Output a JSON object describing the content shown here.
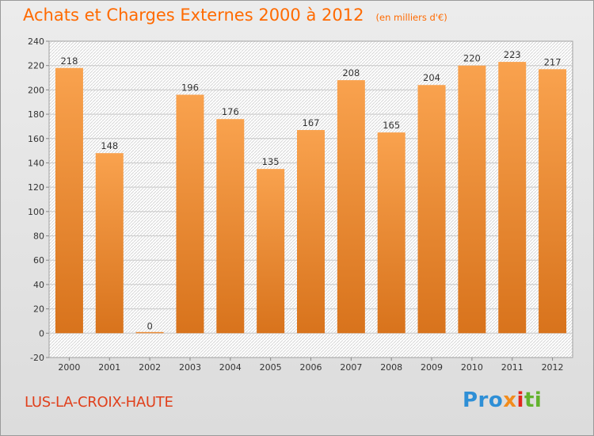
{
  "title": "Achats et Charges Externes 2000 à 2012",
  "subtitle": "(en milliers d'€)",
  "commune": "LUS-LA-CROIX-HAUTE",
  "logo": {
    "parts": [
      "Pro",
      "x",
      "i",
      "ti"
    ]
  },
  "colors": {
    "bar_light": "#f9a24e",
    "bar_dark": "#d8731c",
    "title": "#ff6a00",
    "commune": "#e0401c"
  },
  "chart_data": {
    "type": "bar",
    "categories": [
      "2000",
      "2001",
      "2002",
      "2003",
      "2004",
      "2005",
      "2006",
      "2007",
      "2008",
      "2009",
      "2010",
      "2011",
      "2012"
    ],
    "values": [
      218,
      148,
      0,
      196,
      176,
      135,
      167,
      208,
      165,
      204,
      220,
      223,
      217
    ],
    "title": "Achats et Charges Externes 2000 à 2012",
    "ylim": [
      -20,
      240
    ],
    "yticks": [
      -20,
      0,
      20,
      40,
      60,
      80,
      100,
      120,
      140,
      160,
      180,
      200,
      220,
      240
    ],
    "grid": true
  }
}
